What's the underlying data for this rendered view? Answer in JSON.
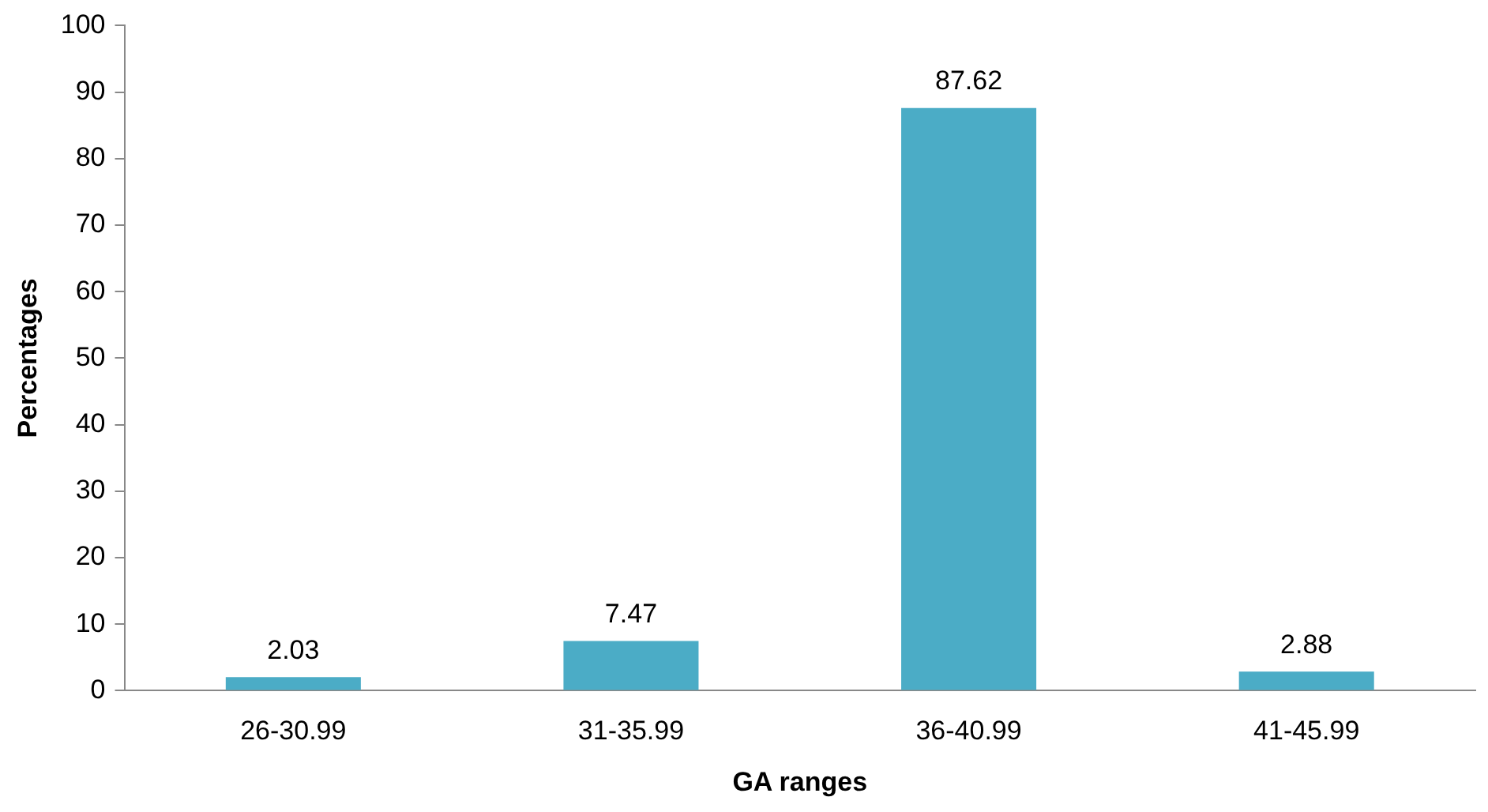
{
  "chart_data": {
    "type": "bar",
    "xlabel": "GA ranges",
    "ylabel": "Percentages",
    "categories": [
      "26-30.99",
      "31-35.99",
      "36-40.99",
      "41-45.99"
    ],
    "values": [
      2.03,
      7.47,
      87.62,
      2.88
    ],
    "color": "#4bacc6",
    "ylim": [
      0,
      100
    ],
    "yticks": [
      0,
      10,
      20,
      30,
      40,
      50,
      60,
      70,
      80,
      90,
      100
    ],
    "grid": false,
    "data_labels": true,
    "legend": false
  }
}
